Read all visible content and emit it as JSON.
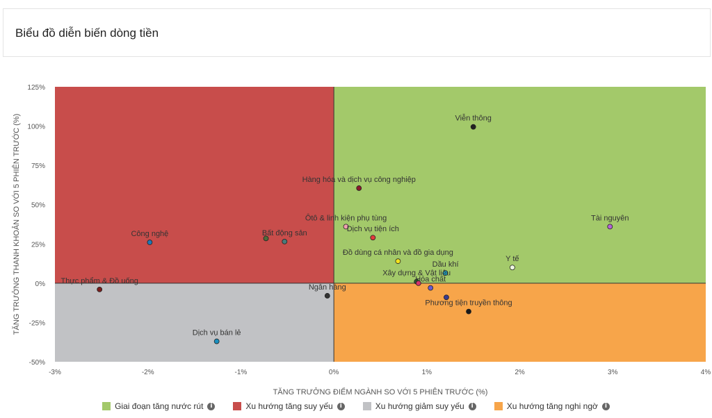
{
  "header": {
    "title": "Biểu đồ diễn biến dòng tiền"
  },
  "colors": {
    "q_top_right": "#a3c96a",
    "q_top_left": "#c84d4b",
    "q_bottom_left": "#c1c2c5",
    "q_bottom_right": "#f7a54a"
  },
  "legend": [
    {
      "label": "Giai đoạn tăng nước rút",
      "color": "#a3c96a",
      "icon": "info-icon"
    },
    {
      "label": "Xu hướng tăng suy yếu",
      "color": "#c84d4b",
      "icon": "info-icon"
    },
    {
      "label": "Xu hướng giảm suy yếu",
      "color": "#c1c2c5",
      "icon": "info-icon"
    },
    {
      "label": "Xu hướng tăng nghi ngờ",
      "color": "#f7a54a",
      "icon": "info-icon"
    }
  ],
  "chart_data": {
    "type": "scatter",
    "xlabel": "TĂNG TRƯỞNG ĐIỂM NGÀNH SO VỚI 5 PHIÊN TRƯỚC (%)",
    "ylabel": "TĂNG TRƯỞNG THANH KHOẢN SO VỚI 5 PHIÊN TRƯỚC (%)",
    "xlim": [
      -3,
      4
    ],
    "ylim": [
      -50,
      125
    ],
    "x_ticks": [
      -3,
      -2,
      -1,
      0,
      1,
      2,
      3,
      4
    ],
    "x_tick_labels": [
      "-3%",
      "-2%",
      "-1%",
      "0%",
      "1%",
      "2%",
      "3%",
      "4%"
    ],
    "y_ticks": [
      -50,
      -25,
      0,
      25,
      50,
      75,
      100,
      125
    ],
    "y_tick_labels": [
      "-50%",
      "-25%",
      "0%",
      "25%",
      "50%",
      "75%",
      "100%",
      "125%"
    ],
    "grid": false,
    "legend_position": "bottom",
    "points": [
      {
        "name": "Viễn thông",
        "x": 1.5,
        "y": 99.5,
        "color": "#222222"
      },
      {
        "name": "Hàng hóa và dịch vụ công nghiệp",
        "x": 0.27,
        "y": 60.5,
        "color": "#8b1a2b"
      },
      {
        "name": "Ôtô & linh kiện phụ tùng",
        "x": 0.13,
        "y": 36,
        "color": "#f0a0b0"
      },
      {
        "name": "Dịch vụ tiện ích",
        "x": 0.42,
        "y": 29,
        "color": "#e23b3b"
      },
      {
        "name": "Tài nguyên",
        "x": 2.97,
        "y": 36,
        "color": "#b463d6"
      },
      {
        "name": "Công nghệ",
        "x": -1.98,
        "y": 26,
        "color": "#1f77b4"
      },
      {
        "name": "Bất động sản",
        "x": -0.53,
        "y": 26.5,
        "color": "#4a7a7a"
      },
      {
        "name": "Đồ dùng cá nhân và đồ gia dụng",
        "x": 0.69,
        "y": 14,
        "color": "#f2e21e"
      },
      {
        "name": "Y tế",
        "x": 1.92,
        "y": 10,
        "color": "#eef7e2"
      },
      {
        "name": "Dầu khí",
        "x": 1.2,
        "y": 6.5,
        "color": "#1aa7c8"
      },
      {
        "name": "Xây dựng & Vật liệu",
        "x": 0.89,
        "y": 1,
        "color": "#2d5a2d"
      },
      {
        "name": "Hóa chất",
        "x": 1.04,
        "y": -3,
        "color": "#6a5acd"
      },
      {
        "name": "Phương tiện truyền thông",
        "x": 1.45,
        "y": -18,
        "color": "#1a1a1a"
      },
      {
        "name": "Thực phẩm & Đồ uống",
        "x": -2.52,
        "y": -4,
        "color": "#7a1e1e"
      },
      {
        "name": "Ngân hàng",
        "x": -0.07,
        "y": -8,
        "color": "#333333"
      },
      {
        "name": "Dịch vụ bán lẻ",
        "x": -1.26,
        "y": -37,
        "color": "#1a8fbf"
      },
      {
        "name": "",
        "x": 0.91,
        "y": 0,
        "color": "#d6336c"
      },
      {
        "name": "",
        "x": 1.21,
        "y": -9,
        "color": "#3b3b8f"
      },
      {
        "name": "",
        "x": -0.73,
        "y": 28.5,
        "color": "#4f6b3a"
      }
    ]
  }
}
